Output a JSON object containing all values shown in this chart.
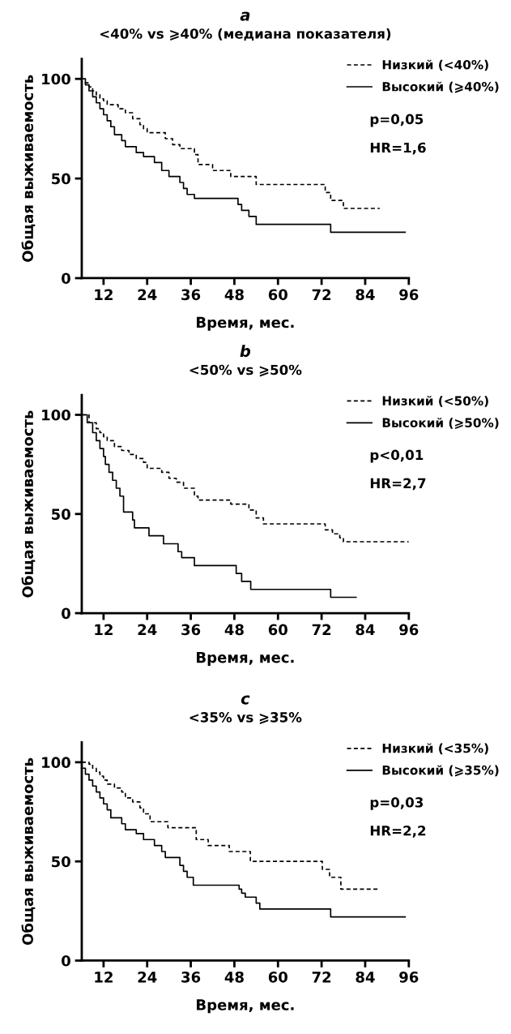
{
  "chart_data": [
    {
      "type": "step",
      "title": "a",
      "subtitle": "<40% vs ⩾40% (медиана показателя)",
      "xlabel": "Время, мес.",
      "ylabel": "Общая выживаемость",
      "xlim": [
        6,
        96
      ],
      "xticks": [
        12,
        24,
        36,
        48,
        60,
        72,
        84,
        96
      ],
      "ylim": [
        0,
        110
      ],
      "yticks": [
        0,
        50,
        100
      ],
      "grid": false,
      "legend": "top right",
      "annotations": [
        "p=0,05",
        "HR=1,6"
      ],
      "series": [
        {
          "name": "Низкий (<40%)",
          "color": "#000000",
          "line_style": "dashed",
          "x": [
            6,
            7,
            8,
            9,
            10,
            11,
            12,
            13,
            16,
            18,
            20,
            22,
            23,
            24,
            29,
            31,
            33,
            37,
            38,
            42,
            47,
            54,
            73,
            74.5,
            77,
            78,
            88
          ],
          "values": [
            100,
            98,
            96,
            94,
            92,
            90,
            89,
            87,
            85,
            83,
            80,
            77,
            75,
            73,
            70,
            67,
            65,
            62,
            57,
            54,
            51,
            47,
            43,
            39,
            39,
            35,
            35
          ]
        },
        {
          "name": "Высокий (⩾40%)",
          "color": "#000000",
          "line_style": "solid",
          "x": [
            6,
            7,
            8,
            9,
            10,
            11,
            12,
            13,
            14,
            15,
            17,
            18,
            21,
            23,
            26,
            28,
            30,
            33,
            34,
            35,
            37,
            49,
            50,
            52,
            54,
            74.5,
            95
          ],
          "values": [
            100,
            97,
            94,
            91,
            88,
            85,
            82,
            79,
            76,
            72,
            69,
            66,
            63,
            61,
            58,
            54,
            51,
            48,
            45,
            42,
            40,
            37,
            34,
            31,
            27,
            23,
            23
          ]
        }
      ]
    },
    {
      "type": "step",
      "title": "b",
      "subtitle": "<50% vs ⩾50%",
      "xlabel": "Время, мес.",
      "ylabel": "Общая выживаемость",
      "xlim": [
        6,
        96
      ],
      "xticks": [
        12,
        24,
        36,
        48,
        60,
        72,
        84,
        96
      ],
      "ylim": [
        0,
        110
      ],
      "yticks": [
        0,
        50,
        100
      ],
      "grid": false,
      "legend": "top right",
      "annotations": [
        "p<0,01",
        "HR=2,7"
      ],
      "series": [
        {
          "name": "Низкий (<50%)",
          "color": "#000000",
          "line_style": "dashed",
          "x": [
            6,
            8,
            10,
            11,
            12,
            13,
            15,
            17,
            19,
            21,
            23,
            24,
            28,
            30,
            32,
            34,
            37,
            38,
            47,
            52,
            54,
            56,
            73,
            75,
            77,
            78,
            96
          ],
          "values": [
            100,
            96,
            93,
            91,
            89,
            87,
            84,
            82,
            80,
            78,
            76,
            73,
            71,
            68,
            66,
            63,
            59,
            57,
            55,
            52,
            48,
            45,
            42,
            40,
            38,
            36,
            36
          ]
        },
        {
          "name": "Высокий (⩾50%)",
          "color": "#000000",
          "line_style": "solid",
          "x": [
            6,
            7.5,
            9,
            10,
            11,
            12,
            12.5,
            13.5,
            14.5,
            15.5,
            16.5,
            17.5,
            20,
            20.5,
            24.5,
            28.5,
            32.5,
            33.5,
            37,
            48.5,
            50,
            52.5,
            74.5,
            81.5
          ],
          "values": [
            100,
            96,
            91,
            87,
            83,
            79,
            75,
            71,
            67,
            63,
            59,
            51,
            47,
            43,
            39,
            35,
            31,
            28,
            24,
            20,
            16,
            12,
            8,
            8
          ]
        }
      ]
    },
    {
      "type": "step",
      "title": "c",
      "subtitle": "<35% vs ⩾35%",
      "xlabel": "Время, мес.",
      "ylabel": "Общая выживаемость",
      "xlim": [
        6,
        96
      ],
      "xticks": [
        12,
        24,
        36,
        48,
        60,
        72,
        84,
        96
      ],
      "ylim": [
        0,
        110
      ],
      "yticks": [
        0,
        50,
        100
      ],
      "grid": false,
      "legend": "top right",
      "annotations": [
        "p=0,03",
        "HR=2,2"
      ],
      "series": [
        {
          "name": "Низкий (<35%)",
          "color": "#000000",
          "line_style": "dashed",
          "x": [
            6,
            8,
            9,
            10,
            11,
            12,
            13,
            15,
            17,
            18,
            20,
            22,
            23,
            24.8,
            29.7,
            37.5,
            40.8,
            46.6,
            52.4,
            72.2,
            74.2,
            77.3,
            88
          ],
          "values": [
            100,
            99,
            97,
            95,
            93,
            91,
            89,
            87,
            85,
            82,
            80,
            77,
            74,
            70,
            67,
            61,
            58,
            55,
            50,
            46,
            42,
            36,
            36
          ]
        },
        {
          "name": "Высокий (⩾35%)",
          "color": "#000000",
          "line_style": "solid",
          "x": [
            6,
            7,
            8,
            9,
            10,
            11,
            12,
            13,
            14,
            17,
            18,
            21,
            23,
            26,
            28,
            29,
            33,
            34,
            35,
            36.7,
            49.3,
            50,
            51,
            54,
            55,
            74.5,
            95
          ],
          "values": [
            97,
            94,
            91,
            88,
            85,
            82,
            79,
            76,
            72,
            69,
            66,
            64,
            61,
            58,
            55,
            52,
            48,
            45,
            42,
            38,
            36,
            34,
            32,
            29,
            26,
            22,
            22
          ]
        }
      ]
    }
  ]
}
